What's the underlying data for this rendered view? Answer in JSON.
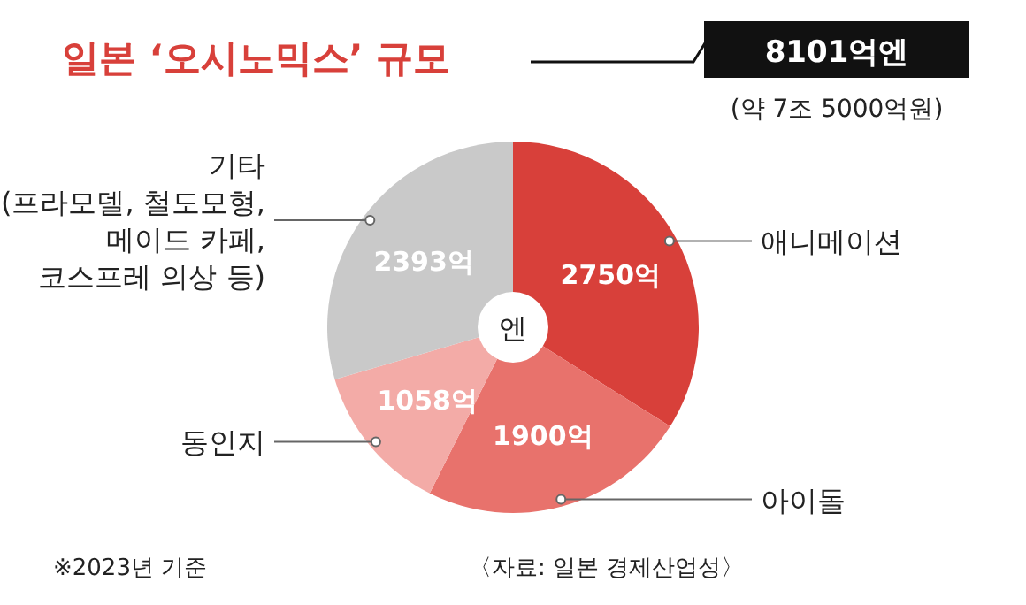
{
  "chart_data": {
    "type": "pie",
    "title": "일본 ‘오시노믹스’ 규모",
    "categories": [
      "애니메이션",
      "아이돌",
      "동인지",
      "기타\n(프라모델, 철도모형,\n메이드 카페,\n코스프레 의상 등)"
    ],
    "values": [
      2750,
      1900,
      1058,
      2393
    ],
    "value_labels": [
      "2750억",
      "1900억",
      "1058억",
      "2393억"
    ],
    "colors": [
      "#d8403a",
      "#e8726c",
      "#f3aba7",
      "#c9c9c9"
    ],
    "annotations": [
      "엔",
      "8101억엔",
      "(약 7조 5000억원)",
      "※2023년 기준",
      "〈자료: 일본 경제산업성〉"
    ]
  }
}
